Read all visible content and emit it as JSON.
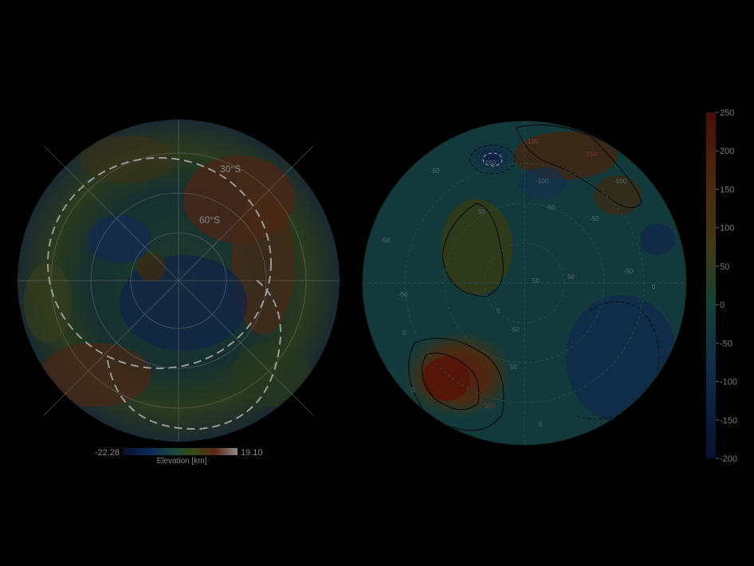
{
  "topography_map": {
    "latitude_labels": [
      "30°S",
      "60°S"
    ],
    "colorbar": {
      "min_label": "-22.28",
      "max_label": "19.10",
      "title": "Elevation [km]"
    }
  },
  "anomaly_map": {
    "colorbar": {
      "tick_labels": [
        "250",
        "200",
        "150",
        "100",
        "50",
        "0",
        "-50",
        "-100",
        "-150",
        "-200"
      ]
    },
    "contour_labels": [
      "-50",
      "-50",
      "-50",
      "-50",
      "-50",
      "-50",
      "50",
      "50",
      "50",
      "50",
      "100",
      "100",
      "150",
      "-100",
      "0",
      "0",
      "0",
      "0",
      "0",
      "-50",
      "-100",
      "-150"
    ],
    "colors": {
      "background": "#000000",
      "low": "#0c1c44",
      "mid": "#13403f",
      "high": "#3a2a10",
      "peak": "#4a1208"
    }
  }
}
